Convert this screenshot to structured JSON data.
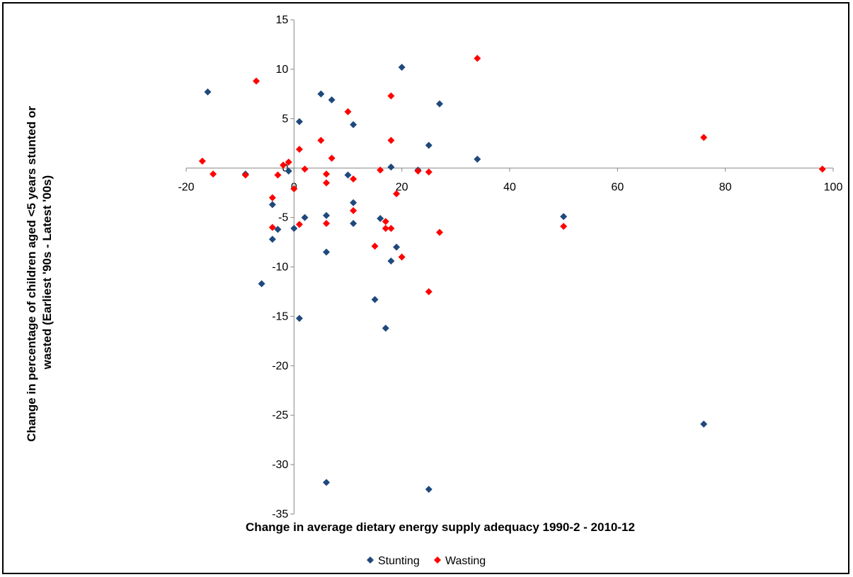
{
  "chart_data": {
    "type": "scatter",
    "xlabel": "Change in average dietary energy supply adequacy 1990-2 - 2010-12",
    "ylabel_lines": [
      "Change in percentage of children aged <5 years stunted or",
      "wasted (Earliest '90s - Latest '00s)"
    ],
    "xlim": [
      -20,
      100
    ],
    "ylim": [
      -35,
      15
    ],
    "xticks": [
      -20,
      0,
      20,
      40,
      60,
      80,
      100
    ],
    "yticks": [
      15,
      10,
      5,
      0,
      -5,
      -10,
      -15,
      -20,
      -25,
      -30,
      -35
    ],
    "grid": false,
    "legend_position": "bottom",
    "series": [
      {
        "name": "Stunting",
        "color": "#1F497D",
        "marker": "diamond",
        "points": [
          [
            -16,
            7.7
          ],
          [
            -9,
            -0.6
          ],
          [
            -6,
            -11.7
          ],
          [
            -4,
            -3.7
          ],
          [
            -4,
            -7.2
          ],
          [
            -3,
            -6.2
          ],
          [
            -1,
            -0.3
          ],
          [
            0,
            -6.1
          ],
          [
            1,
            4.7
          ],
          [
            1,
            -15.2
          ],
          [
            2,
            -5.0
          ],
          [
            5,
            7.5
          ],
          [
            6,
            -4.8
          ],
          [
            6,
            -8.5
          ],
          [
            6,
            -31.8
          ],
          [
            7,
            6.9
          ],
          [
            10,
            -0.7
          ],
          [
            11,
            4.4
          ],
          [
            11,
            -3.5
          ],
          [
            11,
            -5.6
          ],
          [
            15,
            -13.3
          ],
          [
            16,
            -5.1
          ],
          [
            17,
            -16.2
          ],
          [
            18,
            0.1
          ],
          [
            18,
            -9.4
          ],
          [
            19,
            -8.0
          ],
          [
            20,
            10.2
          ],
          [
            23,
            -0.2
          ],
          [
            25,
            2.3
          ],
          [
            25,
            -32.5
          ],
          [
            27,
            6.5
          ],
          [
            34,
            0.9
          ],
          [
            50,
            -4.9
          ],
          [
            76,
            -25.9
          ]
        ]
      },
      {
        "name": "Wasting",
        "color": "#FF0000",
        "marker": "diamond",
        "points": [
          [
            -17,
            0.7
          ],
          [
            -15,
            -0.6
          ],
          [
            -9,
            -0.7
          ],
          [
            -7,
            8.8
          ],
          [
            -4,
            -3.0
          ],
          [
            -4,
            -6.0
          ],
          [
            -3,
            -0.7
          ],
          [
            -2,
            0.3
          ],
          [
            -1,
            0.6
          ],
          [
            0,
            -2.1
          ],
          [
            1,
            1.9
          ],
          [
            1,
            -5.7
          ],
          [
            2,
            -0.1
          ],
          [
            5,
            2.8
          ],
          [
            6,
            -0.6
          ],
          [
            6,
            -1.5
          ],
          [
            6,
            -5.6
          ],
          [
            7,
            1.0
          ],
          [
            10,
            5.7
          ],
          [
            11,
            -1.1
          ],
          [
            11,
            -4.3
          ],
          [
            15,
            -7.9
          ],
          [
            16,
            -0.2
          ],
          [
            17,
            -5.4
          ],
          [
            17,
            -6.1
          ],
          [
            18,
            7.3
          ],
          [
            18,
            2.8
          ],
          [
            18,
            -6.1
          ],
          [
            19,
            -2.6
          ],
          [
            20,
            -9.0
          ],
          [
            23,
            -0.3
          ],
          [
            25,
            -0.4
          ],
          [
            25,
            -12.5
          ],
          [
            27,
            -6.5
          ],
          [
            34,
            11.1
          ],
          [
            50,
            -5.9
          ],
          [
            76,
            3.1
          ],
          [
            98,
            -0.1
          ]
        ]
      }
    ]
  }
}
